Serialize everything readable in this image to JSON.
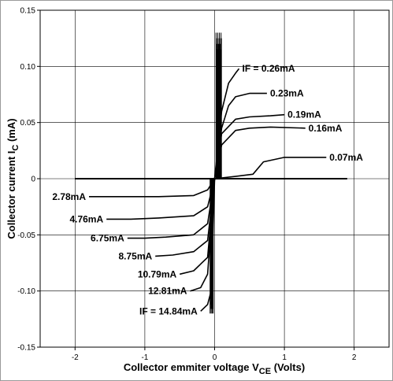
{
  "chart_data": {
    "type": "line",
    "title": "",
    "xlabel": "Collector emmiter voltage V",
    "xlabel_sub": "CE",
    "xlabel_unit": "(Volts)",
    "ylabel": "Collector current I",
    "ylabel_sub": "C",
    "ylabel_unit": "(mA)",
    "xlim": [
      -2.5,
      2.5
    ],
    "ylim": [
      -0.15,
      0.15
    ],
    "grid": true,
    "x_ticks": [
      {
        "value": -2,
        "label": "-2"
      },
      {
        "value": -1,
        "label": "-1"
      },
      {
        "value": 0,
        "label": "0"
      },
      {
        "value": 1,
        "label": "1"
      },
      {
        "value": 2,
        "label": "2"
      }
    ],
    "y_ticks": [
      {
        "value": 0.15,
        "label": "0.15"
      },
      {
        "value": 0.1,
        "label": "0.10"
      },
      {
        "value": 0.05,
        "label": "0.05"
      },
      {
        "value": 0,
        "label": "0"
      },
      {
        "value": -0.05,
        "label": "-0.05"
      },
      {
        "value": -0.1,
        "label": "-0.10"
      },
      {
        "value": -0.15,
        "label": "-0.15"
      }
    ],
    "positive_series": [
      {
        "label": "IF = 0.26mA",
        "x": [
          0,
          0.05,
          0.1,
          0.2,
          0.3,
          0.35
        ],
        "y": [
          0,
          0.03,
          0.06,
          0.085,
          0.094,
          0.098
        ]
      },
      {
        "label": "0.23mA",
        "x": [
          0,
          0.1,
          0.2,
          0.3,
          0.5,
          0.75
        ],
        "y": [
          0,
          0.045,
          0.065,
          0.073,
          0.076,
          0.076
        ]
      },
      {
        "label": "0.19mA",
        "x": [
          0,
          0.1,
          0.3,
          0.5,
          0.8,
          1.0
        ],
        "y": [
          0,
          0.04,
          0.053,
          0.055,
          0.056,
          0.057
        ]
      },
      {
        "label": "0.16mA",
        "x": [
          0,
          0.1,
          0.3,
          0.5,
          0.8,
          1.3
        ],
        "y": [
          0,
          0.03,
          0.043,
          0.045,
          0.046,
          0.045
        ]
      },
      {
        "label": "0.07mA",
        "x": [
          0,
          0.3,
          0.55,
          0.7,
          1.0,
          1.6
        ],
        "y": [
          0,
          0.002,
          0.004,
          0.015,
          0.019,
          0.019
        ]
      }
    ],
    "negative_series": [
      {
        "label": "2.78mA",
        "x": [
          0,
          -0.1,
          -0.3,
          -0.8,
          -1.4,
          -1.8
        ],
        "y": [
          0,
          -0.01,
          -0.015,
          -0.016,
          -0.016,
          -0.016
        ]
      },
      {
        "label": "4.76mA",
        "x": [
          0,
          -0.1,
          -0.3,
          -0.8,
          -1.2,
          -1.55
        ],
        "y": [
          0,
          -0.025,
          -0.033,
          -0.035,
          -0.036,
          -0.036
        ]
      },
      {
        "label": "6.75mA",
        "x": [
          0,
          -0.1,
          -0.3,
          -0.7,
          -1.0,
          -1.25
        ],
        "y": [
          0,
          -0.04,
          -0.05,
          -0.052,
          -0.053,
          -0.053
        ]
      },
      {
        "label": "8.75mA",
        "x": [
          0,
          -0.1,
          -0.3,
          -0.6,
          -0.85
        ],
        "y": [
          0,
          -0.055,
          -0.065,
          -0.068,
          -0.069
        ]
      },
      {
        "label": "10.79mA",
        "x": [
          0,
          -0.1,
          -0.3,
          -0.5
        ],
        "y": [
          0,
          -0.07,
          -0.082,
          -0.085
        ]
      },
      {
        "label": "12.81mA",
        "x": [
          0,
          -0.1,
          -0.2,
          -0.35
        ],
        "y": [
          0,
          -0.085,
          -0.097,
          -0.1
        ]
      },
      {
        "label": "IF = 14.84mA",
        "x": [
          0,
          -0.05,
          -0.1,
          -0.2
        ],
        "y": [
          0,
          -0.1,
          -0.112,
          -0.118
        ]
      }
    ]
  }
}
